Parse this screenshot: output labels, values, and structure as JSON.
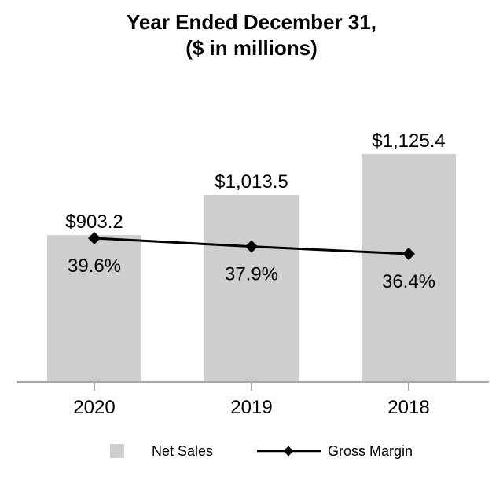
{
  "title": {
    "line1": "Year Ended December 31,",
    "line2": "($ in millions)"
  },
  "legend": {
    "net_sales": "Net Sales",
    "gross_margin": "Gross Margin"
  },
  "colors": {
    "bar": "#cecece",
    "axis": "#a6a6a6",
    "line": "#000000",
    "text": "#000000"
  },
  "chart_data": {
    "type": "combo-bar-line",
    "title": "Year Ended December 31, ($ in millions)",
    "categories": [
      "2020",
      "2019",
      "2018"
    ],
    "series": [
      {
        "name": "Net Sales",
        "type": "bar",
        "values": [
          903.2,
          1013.5,
          1125.4
        ],
        "labels": [
          "$903.2",
          "$1,013.5",
          "$1,125.4"
        ],
        "color": "#cecece"
      },
      {
        "name": "Gross Margin",
        "type": "line",
        "values": [
          39.6,
          37.9,
          36.4
        ],
        "labels": [
          "39.6%",
          "37.9%",
          "36.4%"
        ],
        "color": "#000000",
        "marker": "diamond"
      }
    ],
    "xlabel": "",
    "ylabel": "",
    "value_axis_labels_visible": false,
    "ylim_estimate": [
      500,
      1200
    ],
    "grid": false,
    "legend_position": "bottom"
  }
}
